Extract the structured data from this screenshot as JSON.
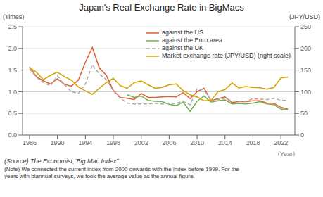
{
  "chart_data": {
    "type": "line",
    "title": "Japan's Real Exchange Rate in BigMacs",
    "ylabel": "(Times)",
    "y2label": "(JPY/USD)",
    "xlabel": "(Year)",
    "annotations": [
      "(Source)  The Economist,“Big Mac Index”",
      "(Note)  We connected the current index from 2000 onwards with the index before 1999. For the\nyears with biannual surveys, we took the average value as the annual figure."
    ],
    "x": [
      1986,
      1987,
      1988,
      1989,
      1990,
      1991,
      1992,
      1993,
      1994,
      1995,
      1996,
      1997,
      1998,
      1999,
      2000,
      2001,
      2002,
      2003,
      2004,
      2005,
      2006,
      2007,
      2008,
      2009,
      2010,
      2011,
      2012,
      2013,
      2014,
      2015,
      2016,
      2017,
      2018,
      2019,
      2020,
      2021,
      2022,
      2023
    ],
    "series": [
      {
        "name": "against the US",
        "color": "#e06030",
        "values": [
          1.57,
          1.35,
          1.25,
          1.18,
          1.3,
          1.17,
          1.13,
          1.27,
          1.68,
          2.02,
          1.55,
          1.38,
          1.03,
          0.87,
          0.85,
          0.82,
          0.96,
          0.87,
          0.87,
          0.88,
          0.89,
          0.88,
          0.98,
          0.84,
          1.0,
          1.08,
          0.79,
          0.84,
          0.88,
          0.75,
          0.77,
          0.77,
          0.79,
          0.79,
          0.74,
          0.73,
          0.64,
          0.6
        ]
      },
      {
        "name": "against the Euro area",
        "color": "#70b050",
        "values": [
          null,
          null,
          null,
          null,
          null,
          null,
          null,
          null,
          null,
          null,
          null,
          null,
          null,
          null,
          0.93,
          0.87,
          0.9,
          0.8,
          0.78,
          0.77,
          0.71,
          0.68,
          0.76,
          0.55,
          0.78,
          0.9,
          0.76,
          0.79,
          0.81,
          0.72,
          0.73,
          0.72,
          0.74,
          0.77,
          0.72,
          0.7,
          0.6,
          0.59
        ]
      },
      {
        "name": "against the UK",
        "color": "#aaaaaa",
        "line_style": "dashed",
        "values": [
          1.53,
          1.33,
          1.21,
          1.14,
          1.37,
          1.16,
          1.0,
          0.96,
          1.18,
          1.62,
          1.41,
          1.28,
          1.02,
          0.85,
          0.74,
          0.72,
          0.72,
          0.72,
          0.73,
          0.72,
          0.73,
          0.73,
          0.78,
          0.7,
          1.07,
          1.04,
          0.8,
          0.82,
          0.85,
          0.79,
          0.78,
          0.78,
          0.84,
          0.83,
          0.82,
          0.85,
          0.8,
          0.8
        ]
      },
      {
        "name": "Market exchange rate (JPY/USD) (right scale)",
        "color": "#d4a000",
        "axis": "y2",
        "values": [
          155,
          145,
          128,
          138,
          145,
          135,
          127,
          111,
          102,
          94,
          108,
          121,
          131,
          114,
          108,
          121,
          125,
          116,
          108,
          110,
          116,
          118,
          103,
          93,
          88,
          79,
          80,
          100,
          105,
          120,
          109,
          112,
          110,
          109,
          106,
          110,
          132,
          134
        ]
      }
    ],
    "reference_line": 1.0,
    "xlim": [
      1985,
      2024
    ],
    "xticks": [
      1986,
      1990,
      1994,
      1998,
      2002,
      2006,
      2010,
      2014,
      2018,
      2022
    ],
    "ylim": [
      0,
      2.5
    ],
    "yticks": [
      {
        "value": 0,
        "label": "0.0"
      },
      0.5,
      {
        "value": 1.0,
        "label": "1.0"
      },
      1.5,
      {
        "value": 2.0,
        "label": "2.0"
      },
      2.5
    ],
    "y2lim": [
      0,
      250
    ],
    "y2ticks": [
      0,
      50,
      100,
      150,
      200,
      250
    ],
    "grid": true,
    "legend": "upper right"
  }
}
